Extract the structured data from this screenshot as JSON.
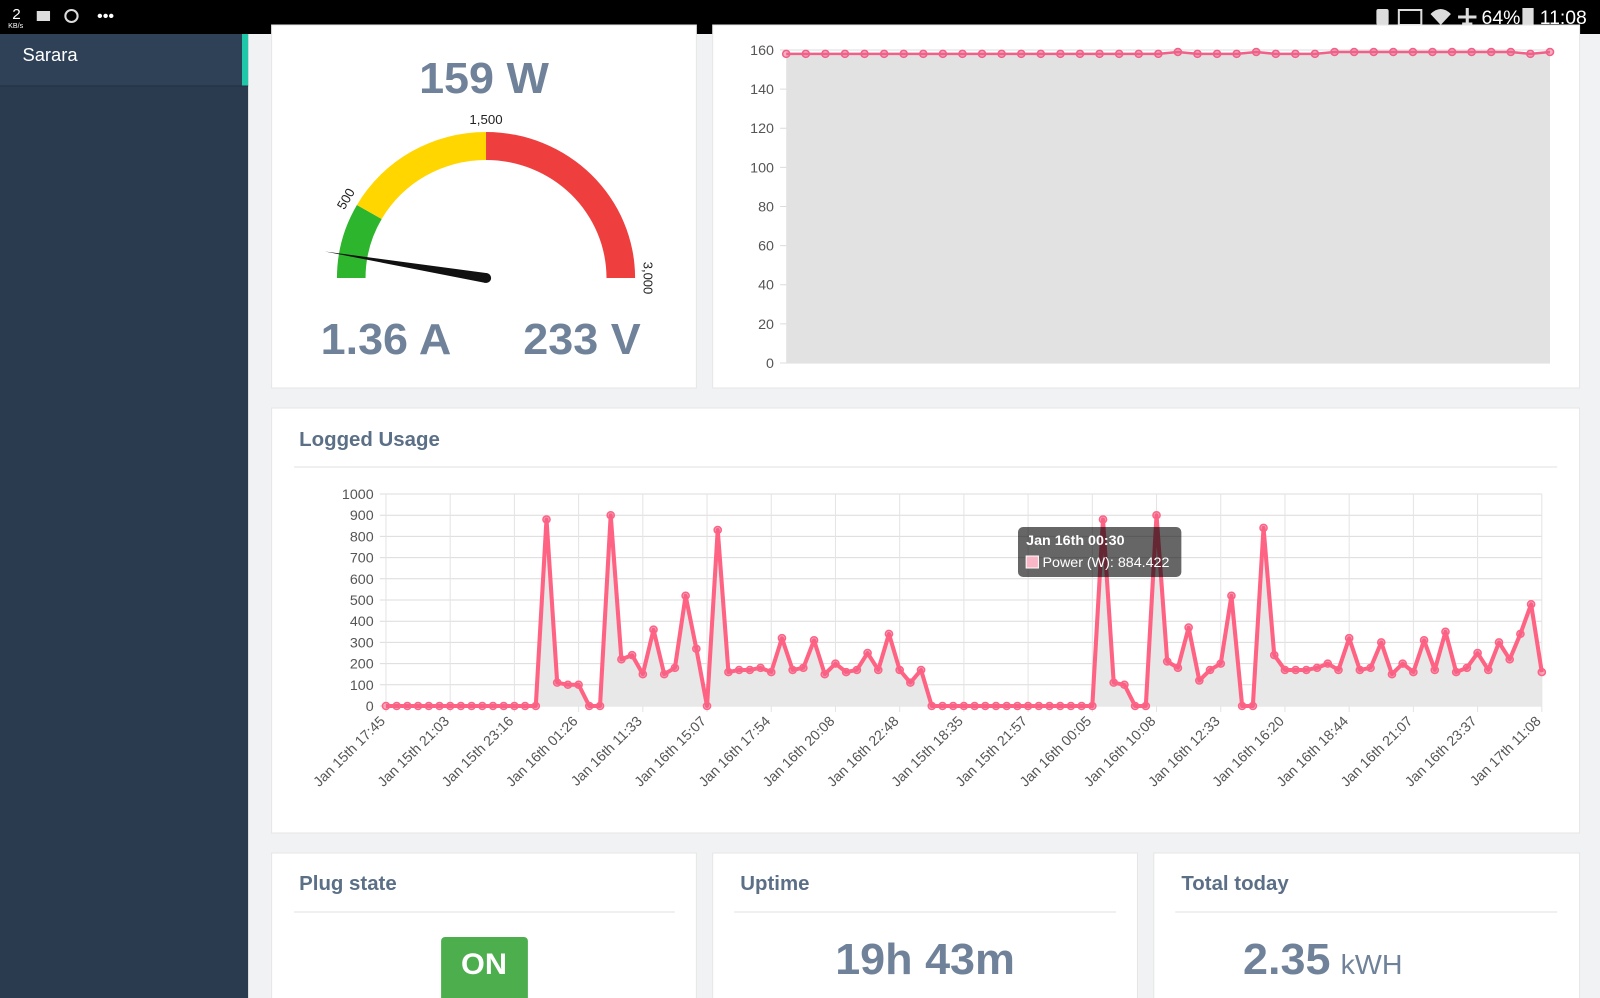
{
  "status_bar": {
    "speed": "2",
    "speed_unit": "KB/s",
    "battery": "64%",
    "time": "11:08"
  },
  "sidebar": {
    "item": "Sarara"
  },
  "gauge": {
    "power": "159 W",
    "current": "1.36 A",
    "voltage": "233 V",
    "value": 159,
    "min": 0,
    "max": 3000,
    "ticks": [
      500,
      {
        "value": 1500,
        "label": "1,500"
      },
      {
        "value": 3000,
        "label": "3,000"
      }
    ],
    "bands": [
      {
        "from": 0,
        "to": 500,
        "color": "#2db52d"
      },
      {
        "from": 500,
        "to": 1500,
        "color": "#ffd600"
      },
      {
        "from": 1500,
        "to": 3000,
        "color": "#ef3e3e"
      }
    ]
  },
  "top_chart": {
    "type": "line",
    "color": "#f06088",
    "ylim": [
      0,
      160
    ],
    "yticks": [
      0,
      20,
      40,
      60,
      80,
      100,
      120,
      140,
      160
    ],
    "values": [
      158,
      158,
      158,
      158,
      158,
      158,
      158,
      158,
      158,
      158,
      158,
      158,
      158,
      158,
      158,
      158,
      158,
      158,
      158,
      158,
      159,
      158,
      158,
      158,
      159,
      158,
      158,
      158,
      159,
      159,
      159,
      159,
      159,
      159,
      159,
      159,
      159,
      159,
      158,
      159
    ]
  },
  "logged_usage": {
    "type": "line",
    "title": "Logged Usage",
    "color": "#ff6384",
    "ylim": [
      0,
      1000
    ],
    "yticks": [
      0,
      100,
      200,
      300,
      400,
      500,
      600,
      700,
      800,
      900,
      1000
    ],
    "categories": [
      "Jan 15th 17:45",
      null,
      null,
      null,
      null,
      null,
      "Jan 15th 21:03",
      null,
      null,
      null,
      null,
      null,
      "Jan 15th 23:16",
      null,
      null,
      null,
      null,
      null,
      "Jan 16th 01:26",
      null,
      null,
      null,
      null,
      null,
      "Jan 16th 11:33",
      null,
      null,
      null,
      null,
      null,
      "Jan 16th 15:07",
      null,
      null,
      null,
      null,
      null,
      "Jan 16th 17:54",
      null,
      null,
      null,
      null,
      null,
      "Jan 16th 20:08",
      null,
      null,
      null,
      null,
      null,
      "Jan 16th 22:48",
      null,
      null,
      null,
      null,
      null,
      "Jan 15th 18:35",
      null,
      null,
      null,
      null,
      null,
      "Jan 15th 21:57",
      null,
      null,
      null,
      null,
      null,
      "Jan 16th 00:05",
      null,
      null,
      null,
      null,
      null,
      "Jan 16th 10:08",
      null,
      null,
      null,
      null,
      null,
      "Jan 16th 12:33",
      null,
      null,
      null,
      null,
      null,
      "Jan 16th 16:20",
      null,
      null,
      null,
      null,
      null,
      "Jan 16th 18:44",
      null,
      null,
      null,
      null,
      null,
      "Jan 16th 21:07",
      null,
      null,
      null,
      null,
      null,
      "Jan 16th 23:37",
      null,
      null,
      null,
      null,
      null,
      "Jan 17th 11:08"
    ],
    "series": [
      {
        "name": "Power (W)",
        "values": [
          0,
          0,
          0,
          0,
          0,
          0,
          0,
          0,
          0,
          0,
          0,
          0,
          0,
          0,
          0,
          880,
          110,
          100,
          100,
          0,
          0,
          900,
          220,
          240,
          150,
          360,
          150,
          180,
          520,
          270,
          0,
          830,
          160,
          170,
          170,
          180,
          160,
          320,
          170,
          180,
          310,
          150,
          200,
          160,
          170,
          250,
          170,
          340,
          170,
          110,
          170,
          0,
          0,
          0,
          0,
          0,
          0,
          0,
          0,
          0,
          0,
          0,
          0,
          0,
          0,
          0,
          0,
          880,
          110,
          100,
          0,
          0,
          900,
          210,
          180,
          370,
          120,
          170,
          200,
          520,
          0,
          0,
          840,
          240,
          170,
          170,
          170,
          180,
          200,
          170,
          320,
          170,
          180,
          300,
          150,
          200,
          160,
          310,
          170,
          350,
          160,
          180,
          250,
          170,
          300,
          220,
          340,
          480,
          160
        ]
      }
    ],
    "tooltip": {
      "title": "Jan 16th 00:30",
      "label": "Power (W): 884.422"
    }
  },
  "cards": {
    "plug": {
      "title": "Plug state",
      "state": "ON"
    },
    "uptime": {
      "title": "Uptime",
      "value": "19h 43m"
    },
    "total": {
      "title": "Total today",
      "value": "2.35",
      "unit": "kWH"
    }
  }
}
